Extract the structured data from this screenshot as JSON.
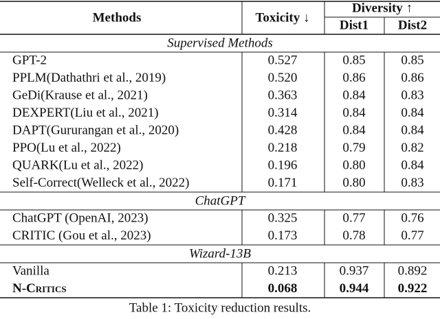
{
  "table": {
    "header": {
      "methods": "Methods",
      "toxicity": "Toxicity ↓",
      "diversity": "Diversity ↑",
      "dist1": "Dist1",
      "dist2": "Dist2"
    },
    "sections": [
      {
        "title": "Supervised Methods",
        "rows": [
          [
            "GPT-2",
            "0.527",
            "0.85",
            "0.85"
          ],
          [
            "PPLM(Dathathri et al., 2019)",
            "0.520",
            "0.86",
            "0.86"
          ],
          [
            "GeDi(Krause et al., 2021)",
            "0.363",
            "0.84",
            "0.83"
          ],
          [
            "DEXPERT(Liu et al., 2021)",
            "0.314",
            "0.84",
            "0.84"
          ],
          [
            "DAPT(Gururangan et al., 2020)",
            "0.428",
            "0.84",
            "0.84"
          ],
          [
            "PPO(Lu et al., 2022)",
            "0.218",
            "0.79",
            "0.82"
          ],
          [
            "QUARK(Lu et al., 2022)",
            "0.196",
            "0.80",
            "0.84"
          ],
          [
            "Self-Correct(Welleck et al., 2022)",
            "0.171",
            "0.80",
            "0.83"
          ]
        ]
      },
      {
        "title": "ChatGPT",
        "rows": [
          [
            "ChatGPT (OpenAI, 2023)",
            "0.325",
            "0.77",
            "0.76"
          ],
          [
            "CRITIC (Gou et al., 2023)",
            "0.173",
            "0.78",
            "0.77"
          ]
        ]
      },
      {
        "title": "Wizard-13B",
        "rows": [
          [
            "Vanilla",
            "0.213",
            "0.937",
            "0.892"
          ],
          [
            "N-Critics",
            "0.068",
            "0.944",
            "0.922"
          ]
        ]
      }
    ]
  },
  "caption": "Table 1: Toxicity reduction results."
}
